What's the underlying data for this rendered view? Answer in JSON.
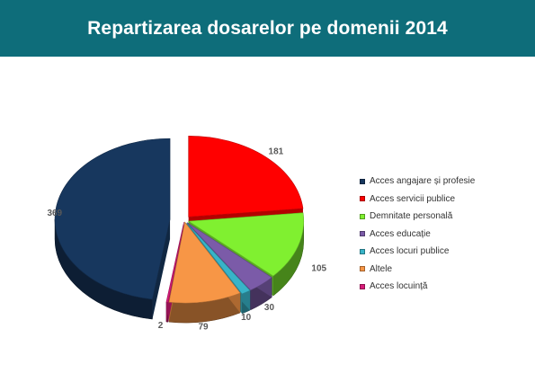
{
  "title": "Repartizarea dosarelor pe domenii 2014",
  "chart_data": {
    "type": "pie",
    "title": "Repartizarea dosarelor pe domenii 2014",
    "categories": [
      "Acces angajare și profesie",
      "Acces servicii publice",
      "Demnitate personală",
      "Acces educație",
      "Acces locuri publice",
      "Altele",
      "Acces locuință"
    ],
    "values": [
      369,
      181,
      105,
      30,
      10,
      79,
      2
    ],
    "colors": [
      "#17375e",
      "#ff0000",
      "#80f030",
      "#7b5ba8",
      "#38b4c8",
      "#f79646",
      "#d81b79"
    ],
    "legend": "right",
    "style": "3d-exploded"
  }
}
